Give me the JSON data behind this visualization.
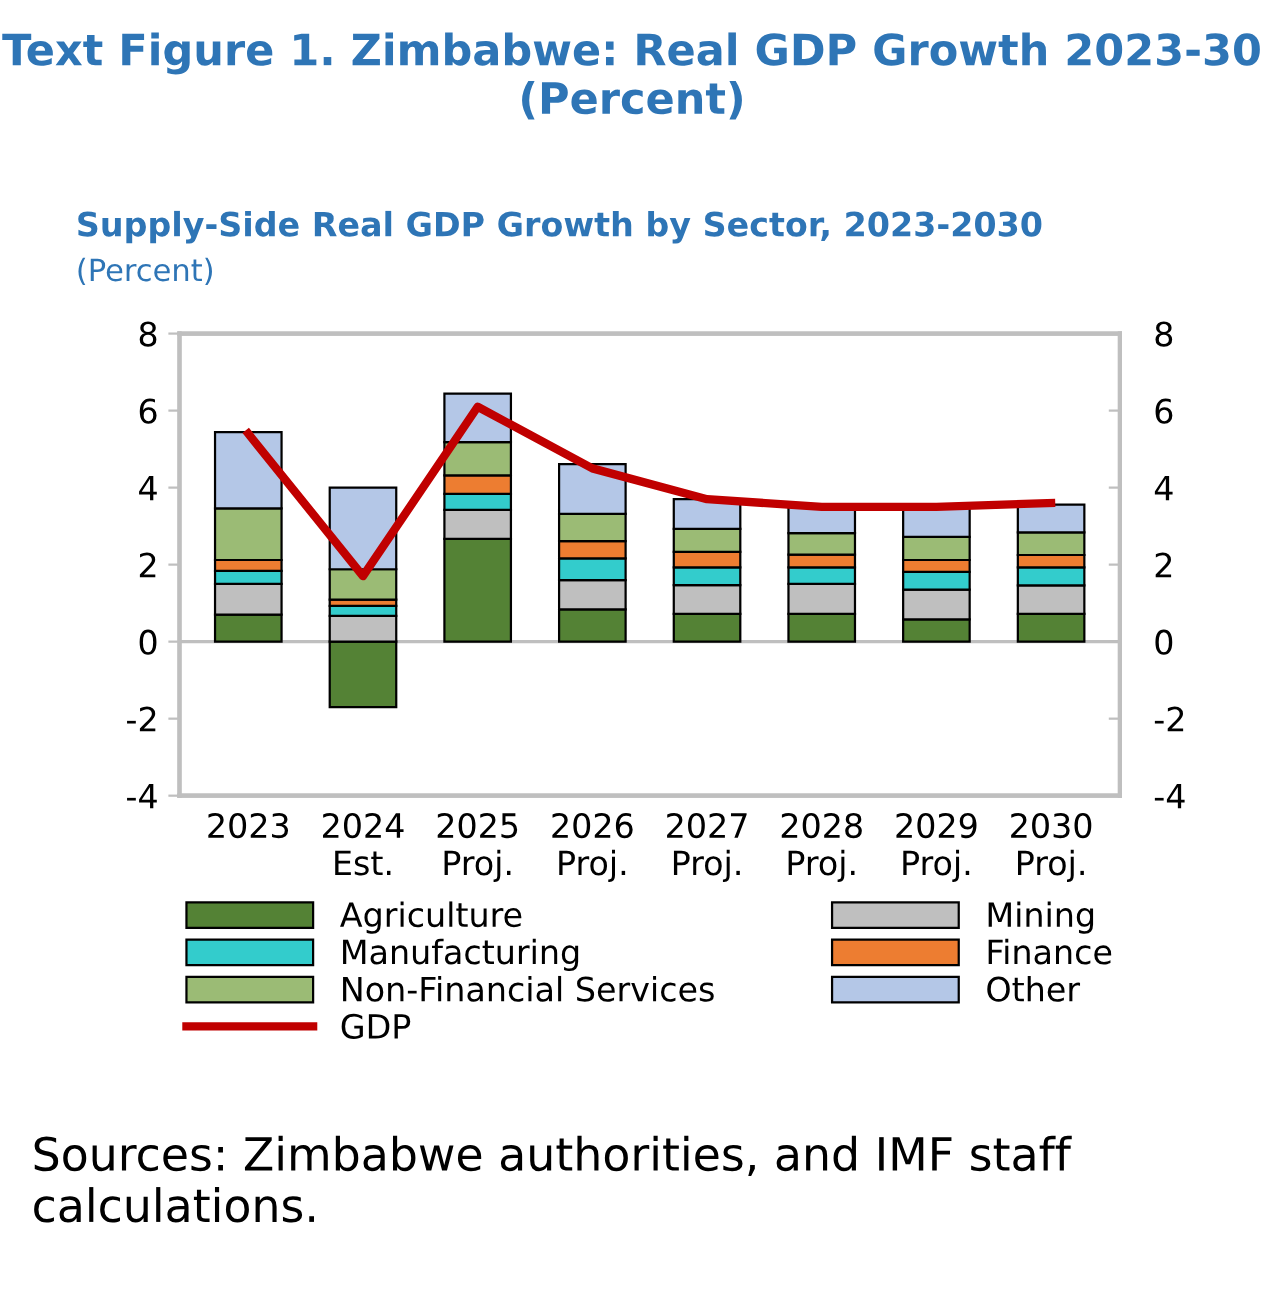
{
  "chart_data": {
    "type": "bar",
    "stacked": true,
    "title": "Text Figure 1. Zimbabwe: Real GDP Growth 2023-30 (Percent)",
    "subtitle": "Supply-Side Real GDP Growth by Sector, 2023-2030",
    "ylabel": "(Percent)",
    "categories": [
      "2023",
      "2024\nEst.",
      "2025\nProj.",
      "2026\nProj.",
      "2027\nProj.",
      "2028\nProj.",
      "2029\nProj.",
      "2030\nProj."
    ],
    "series": [
      {
        "name": "Agriculture",
        "color": "#548235",
        "values": [
          0.7,
          -1.7,
          2.67,
          0.84,
          0.72,
          0.72,
          0.58,
          0.72
        ]
      },
      {
        "name": "Mining",
        "color": "#bfbfbf",
        "values": [
          0.8,
          0.67,
          0.75,
          0.76,
          0.75,
          0.78,
          0.77,
          0.74
        ]
      },
      {
        "name": "Manufacturing",
        "color": "#33cccc",
        "values": [
          0.34,
          0.26,
          0.42,
          0.56,
          0.46,
          0.43,
          0.46,
          0.47
        ]
      },
      {
        "name": "Finance",
        "color": "#ed7d31",
        "values": [
          0.28,
          0.16,
          0.48,
          0.45,
          0.4,
          0.33,
          0.31,
          0.32
        ]
      },
      {
        "name": "Non-Financial Services",
        "color": "#9bbb75",
        "values": [
          1.34,
          0.79,
          0.86,
          0.71,
          0.6,
          0.56,
          0.6,
          0.59
        ]
      },
      {
        "name": "Other",
        "color": "#b4c7e7",
        "values": [
          1.98,
          2.12,
          1.26,
          1.29,
          0.77,
          0.68,
          0.81,
          0.72
        ]
      },
      {
        "name": "GDP",
        "type": "line",
        "color": "#c00000",
        "values": [
          5.4,
          1.7,
          6.1,
          4.5,
          3.7,
          3.5,
          3.5,
          3.6
        ]
      }
    ],
    "ylim": [
      -4,
      8
    ],
    "yticks": [
      -4,
      -2,
      0,
      2,
      4,
      6,
      8
    ],
    "y2lim": [
      -4,
      8
    ],
    "y2ticks": [
      -4,
      -2,
      0,
      2,
      4,
      6,
      8
    ],
    "ref_lines": [
      {
        "axis": "y",
        "value": 0,
        "color": "#bfbfbf"
      }
    ],
    "legend": "bottom",
    "annotations": [
      "Sources: Zimbabwe authorities, and IMF staff calculations."
    ]
  }
}
